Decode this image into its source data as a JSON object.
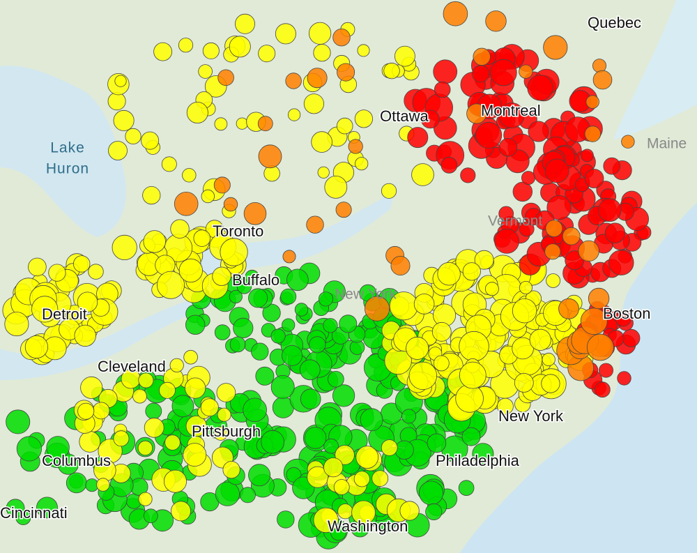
{
  "map": {
    "labels": [
      {
        "text": "Quebec"
      },
      {
        "text": "Ottawa"
      },
      {
        "text": "Montreal"
      },
      {
        "text": "Maine"
      },
      {
        "text": "Lake"
      },
      {
        "text": "Huron"
      },
      {
        "text": "Toronto"
      },
      {
        "text": "Buffalo"
      },
      {
        "text": "Detroit"
      },
      {
        "text": "Cleveland"
      },
      {
        "text": "Pittsburgh"
      },
      {
        "text": "Columbus"
      },
      {
        "text": "Cincinnati"
      },
      {
        "text": "Boston"
      },
      {
        "text": "Vermont"
      },
      {
        "text": "New York"
      },
      {
        "text": "New York"
      },
      {
        "text": "Philadelphia"
      },
      {
        "text": "Washington"
      }
    ]
  }
}
